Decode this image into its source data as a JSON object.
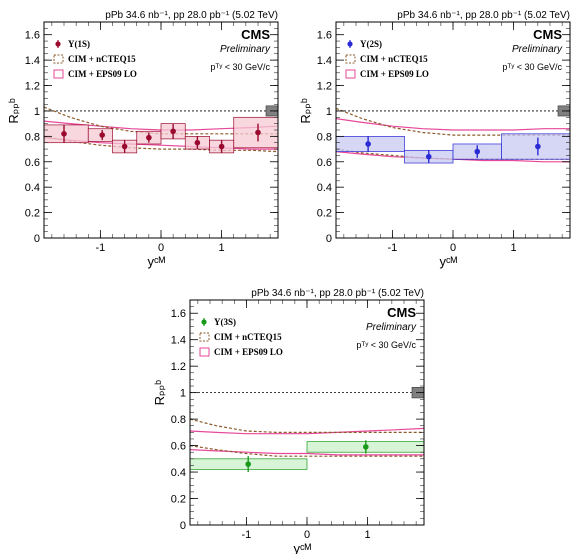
{
  "colors": {
    "ncteq": "#8b5a2b",
    "eps09": "#e8489a",
    "unity_box": "#808080"
  },
  "chart_data": [
    {
      "type": "scatter",
      "panel": "Upsilon(1S)",
      "lumi_label": "pPb 34.6 nb⁻¹, pp 28.0 pb⁻¹ (5.02 TeV)",
      "experiment": "CMS",
      "status": "Preliminary",
      "cut_label": "pᵀʸ < 30 GeV/c",
      "xlabel": "yᶜᴹ",
      "ylabel": "Rₚₚᵇ",
      "xlim": [
        -1.93,
        1.93
      ],
      "ylim": [
        0,
        1.7
      ],
      "xticks": [
        "-1",
        "0",
        "1"
      ],
      "yticks": [
        "0",
        "0.2",
        "0.4",
        "0.6",
        "0.8",
        "1",
        "1.2",
        "1.4",
        "1.6"
      ],
      "color": "#9a0a2e",
      "fill": "#f6c9d4",
      "legend": [
        "Υ(1S)",
        "CIM + nCTEQ15",
        "CIM + EPS09 LO"
      ],
      "points": [
        {
          "x": -1.6,
          "y": 0.82,
          "err": 0.07,
          "xlo": -1.93,
          "xhi": -1.2,
          "syst": 0.07
        },
        {
          "x": -0.97,
          "y": 0.81,
          "err": 0.04,
          "xlo": -1.2,
          "xhi": -0.8,
          "syst": 0.05
        },
        {
          "x": -0.6,
          "y": 0.72,
          "err": 0.05,
          "xlo": -0.8,
          "xhi": -0.4,
          "syst": 0.05
        },
        {
          "x": -0.2,
          "y": 0.79,
          "err": 0.04,
          "xlo": -0.4,
          "xhi": 0.0,
          "syst": 0.05
        },
        {
          "x": 0.2,
          "y": 0.84,
          "err": 0.06,
          "xlo": 0.0,
          "xhi": 0.4,
          "syst": 0.06
        },
        {
          "x": 0.6,
          "y": 0.75,
          "err": 0.05,
          "xlo": 0.4,
          "xhi": 0.8,
          "syst": 0.05
        },
        {
          "x": 1.0,
          "y": 0.72,
          "err": 0.05,
          "xlo": 0.8,
          "xhi": 1.2,
          "syst": 0.05
        },
        {
          "x": 1.6,
          "y": 0.83,
          "err": 0.07,
          "xlo": 1.2,
          "xhi": 1.93,
          "syst": 0.12
        }
      ],
      "ncteq_upper": {
        "x": [
          -1.93,
          -1.5,
          -1.0,
          -0.5,
          0.0,
          0.5,
          1.0,
          1.5,
          1.93
        ],
        "y": [
          1.03,
          0.95,
          0.88,
          0.84,
          0.82,
          0.82,
          0.82,
          0.82,
          0.82
        ]
      },
      "ncteq_lower": {
        "x": [
          -1.93,
          -1.5,
          -1.0,
          -0.5,
          0.0,
          0.5,
          1.0,
          1.5,
          1.93
        ],
        "y": [
          0.8,
          0.76,
          0.73,
          0.71,
          0.7,
          0.7,
          0.69,
          0.69,
          0.68
        ]
      },
      "eps_upper": {
        "x": [
          -1.93,
          -1.5,
          -1.0,
          -0.5,
          0.0,
          0.5,
          1.0,
          1.5,
          1.93
        ],
        "y": [
          0.92,
          0.9,
          0.88,
          0.86,
          0.85,
          0.85,
          0.86,
          0.87,
          0.88
        ]
      },
      "eps_lower": {
        "x": [
          -1.93,
          -1.5,
          -1.0,
          -0.5,
          0.0,
          0.5,
          1.0,
          1.5,
          1.93
        ],
        "y": [
          0.79,
          0.77,
          0.75,
          0.74,
          0.73,
          0.72,
          0.71,
          0.7,
          0.7
        ]
      }
    },
    {
      "type": "scatter",
      "panel": "Upsilon(2S)",
      "lumi_label": "pPb 34.6 nb⁻¹, pp 28.0 pb⁻¹ (5.02 TeV)",
      "experiment": "CMS",
      "status": "Preliminary",
      "cut_label": "pᵀʸ < 30 GeV/c",
      "xlabel": "yᶜᴹ",
      "ylabel": "Rₚₚᵇ",
      "xlim": [
        -1.93,
        1.93
      ],
      "ylim": [
        0,
        1.7
      ],
      "xticks": [
        "-1",
        "0",
        "1"
      ],
      "yticks": [
        "0",
        "0.2",
        "0.4",
        "0.6",
        "0.8",
        "1",
        "1.2",
        "1.4",
        "1.6"
      ],
      "color": "#2b2bd6",
      "fill": "#c8c8f2",
      "legend": [
        "Υ(2S)",
        "CIM + nCTEQ15",
        "CIM + EPS09 LO"
      ],
      "points": [
        {
          "x": -1.4,
          "y": 0.74,
          "err": 0.06,
          "xlo": -1.93,
          "xhi": -0.8,
          "syst": 0.06
        },
        {
          "x": -0.4,
          "y": 0.64,
          "err": 0.05,
          "xlo": -0.8,
          "xhi": 0.0,
          "syst": 0.05
        },
        {
          "x": 0.4,
          "y": 0.68,
          "err": 0.05,
          "xlo": 0.0,
          "xhi": 0.8,
          "syst": 0.06
        },
        {
          "x": 1.4,
          "y": 0.72,
          "err": 0.07,
          "xlo": 0.8,
          "xhi": 1.93,
          "syst": 0.1
        }
      ],
      "ncteq_upper": {
        "x": [
          -1.93,
          -1.5,
          -1.0,
          -0.5,
          0.0,
          0.5,
          1.0,
          1.5,
          1.93
        ],
        "y": [
          1.02,
          0.94,
          0.87,
          0.83,
          0.81,
          0.81,
          0.81,
          0.81,
          0.81
        ]
      },
      "ncteq_lower": {
        "x": [
          -1.93,
          -1.5,
          -1.0,
          -0.5,
          0.0,
          0.5,
          1.0,
          1.5,
          1.93
        ],
        "y": [
          0.7,
          0.67,
          0.65,
          0.63,
          0.62,
          0.62,
          0.62,
          0.62,
          0.62
        ]
      },
      "eps_upper": {
        "x": [
          -1.93,
          -1.5,
          -1.0,
          -0.5,
          0.0,
          0.5,
          1.0,
          1.5,
          1.93
        ],
        "y": [
          0.94,
          0.91,
          0.88,
          0.86,
          0.85,
          0.85,
          0.85,
          0.86,
          0.86
        ]
      },
      "eps_lower": {
        "x": [
          -1.93,
          -1.5,
          -1.0,
          -0.5,
          0.0,
          0.5,
          1.0,
          1.5,
          1.93
        ],
        "y": [
          0.68,
          0.66,
          0.64,
          0.63,
          0.62,
          0.61,
          0.61,
          0.6,
          0.6
        ]
      }
    },
    {
      "type": "scatter",
      "panel": "Upsilon(3S)",
      "lumi_label": "pPb 34.6 nb⁻¹, pp 28.0 pb⁻¹ (5.02 TeV)",
      "experiment": "CMS",
      "status": "Preliminary",
      "cut_label": "pᵀʸ < 30 GeV/c",
      "xlabel": "yᶜᴹ",
      "ylabel": "Rₚₚᵇ",
      "xlim": [
        -1.93,
        1.93
      ],
      "ylim": [
        0,
        1.7
      ],
      "xticks": [
        "-1",
        "0",
        "1"
      ],
      "yticks": [
        "0",
        "0.2",
        "0.4",
        "0.6",
        "0.8",
        "1",
        "1.2",
        "1.4",
        "1.6"
      ],
      "color": "#1a9a1a",
      "fill": "#c9f0c9",
      "legend": [
        "Υ(3S)",
        "CIM + nCTEQ15",
        "CIM + EPS09 LO"
      ],
      "points": [
        {
          "x": -0.97,
          "y": 0.46,
          "err": 0.06,
          "xlo": -1.93,
          "xhi": 0.0,
          "syst": 0.04
        },
        {
          "x": 0.97,
          "y": 0.59,
          "err": 0.05,
          "xlo": 0.0,
          "xhi": 1.93,
          "syst": 0.04
        }
      ],
      "ncteq_upper": {
        "x": [
          -1.93,
          -1.5,
          -1.0,
          -0.5,
          0.0,
          0.5,
          1.0,
          1.5,
          1.93
        ],
        "y": [
          0.8,
          0.75,
          0.71,
          0.7,
          0.7,
          0.7,
          0.7,
          0.7,
          0.7
        ]
      },
      "ncteq_lower": {
        "x": [
          -1.93,
          -1.5,
          -1.0,
          -0.5,
          0.0,
          0.5,
          1.0,
          1.5,
          1.93
        ],
        "y": [
          0.6,
          0.57,
          0.54,
          0.52,
          0.52,
          0.52,
          0.52,
          0.52,
          0.52
        ]
      },
      "eps_upper": {
        "x": [
          -1.93,
          -1.5,
          -1.0,
          -0.5,
          0.0,
          0.5,
          1.0,
          1.5,
          1.93
        ],
        "y": [
          0.71,
          0.7,
          0.69,
          0.69,
          0.69,
          0.7,
          0.71,
          0.72,
          0.73
        ]
      },
      "eps_lower": {
        "x": [
          -1.93,
          -1.5,
          -1.0,
          -0.5,
          0.0,
          0.5,
          1.0,
          1.5,
          1.93
        ],
        "y": [
          0.57,
          0.56,
          0.55,
          0.54,
          0.54,
          0.53,
          0.53,
          0.53,
          0.53
        ]
      }
    }
  ]
}
